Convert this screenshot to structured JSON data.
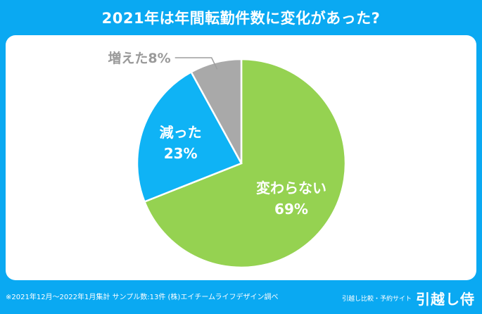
{
  "header": {
    "title": "2021年は年間転勤件数に変化があった?"
  },
  "chart_data": {
    "type": "pie",
    "categories": [
      "変わらない",
      "減った",
      "増えた"
    ],
    "values": [
      69,
      23,
      8
    ],
    "unit": "%",
    "colors": [
      "#95d251",
      "#0fb3f5",
      "#a9a9a9"
    ]
  },
  "footer": {
    "note": "※2021年12月〜2022年1月集計 サンプル数:13件 (株)エイチームライフデザイン調べ",
    "brand_sub": "引越し比較・予約サイト",
    "brand_main": "引越し侍"
  }
}
